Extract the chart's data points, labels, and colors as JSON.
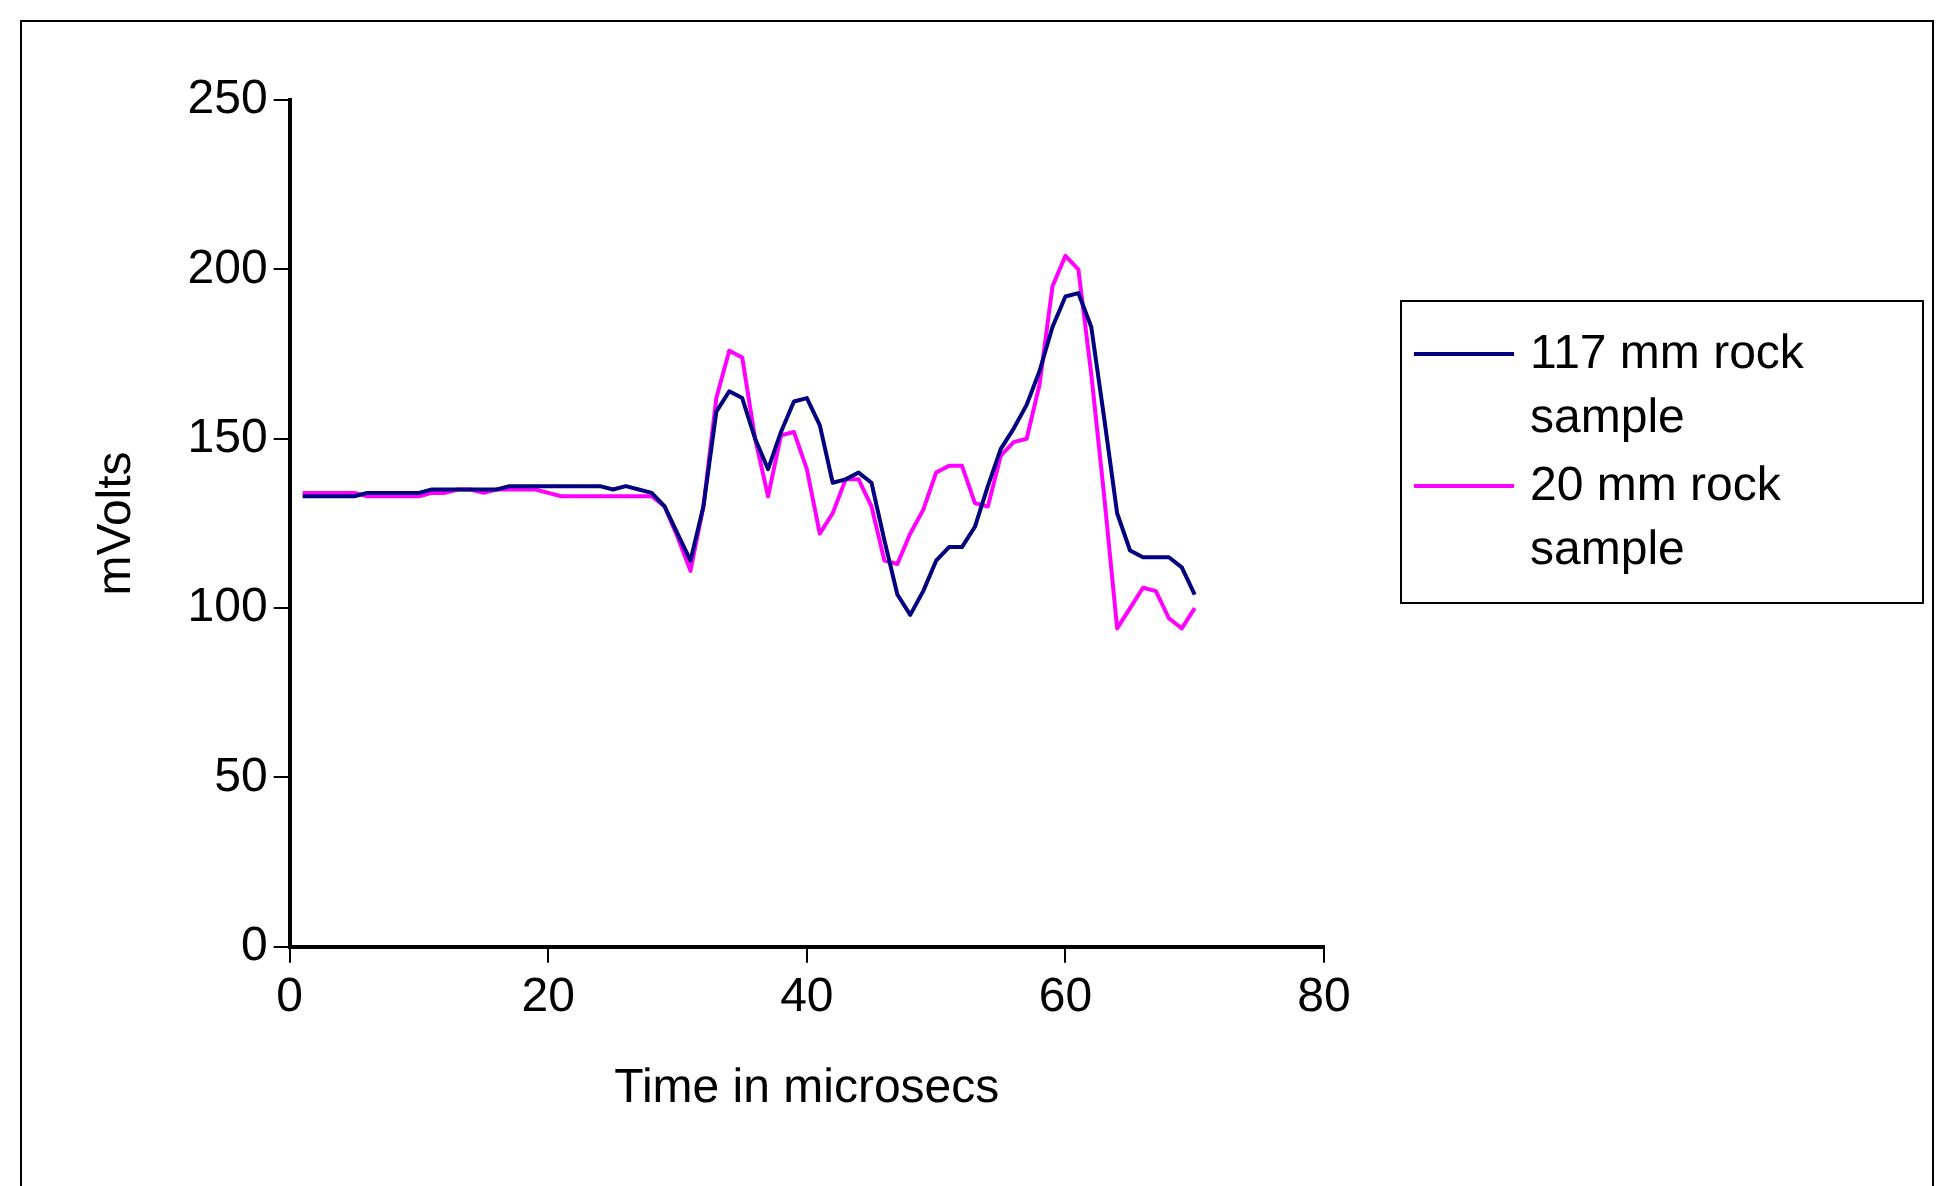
{
  "chart_data": {
    "type": "line",
    "xlabel": "Time in microsecs",
    "ylabel": "mVolts",
    "x": [
      1,
      2,
      3,
      4,
      5,
      6,
      7,
      8,
      9,
      10,
      11,
      12,
      13,
      14,
      15,
      16,
      17,
      18,
      19,
      20,
      21,
      22,
      23,
      24,
      25,
      26,
      27,
      28,
      29,
      30,
      31,
      32,
      33,
      34,
      35,
      36,
      37,
      38,
      39,
      40,
      41,
      42,
      43,
      44,
      45,
      46,
      47,
      48,
      49,
      50,
      51,
      52,
      53,
      54,
      55,
      56,
      57,
      58,
      59,
      60,
      61,
      62,
      63,
      64,
      65,
      66,
      67,
      68,
      69,
      70
    ],
    "series": [
      {
        "name": "117 mm rock sample",
        "color": "#000080",
        "values": [
          133,
          133,
          133,
          133,
          133,
          134,
          134,
          134,
          134,
          134,
          135,
          135,
          135,
          135,
          135,
          135,
          136,
          136,
          136,
          136,
          136,
          136,
          136,
          136,
          135,
          136,
          135,
          134,
          130,
          122,
          114,
          130,
          158,
          164,
          162,
          150,
          141,
          152,
          161,
          162,
          154,
          137,
          138,
          140,
          137,
          120,
          104,
          98,
          105,
          114,
          118,
          118,
          124,
          136,
          147,
          153,
          160,
          170,
          183,
          192,
          193,
          183,
          156,
          128,
          117,
          115,
          115,
          115,
          112,
          104
        ]
      },
      {
        "name": "20 mm rock sample",
        "color": "#ff00ff",
        "values": [
          134,
          134,
          134,
          134,
          134,
          133,
          133,
          133,
          133,
          133,
          134,
          134,
          135,
          135,
          134,
          135,
          135,
          135,
          135,
          134,
          133,
          133,
          133,
          133,
          133,
          133,
          133,
          133,
          130,
          121,
          111,
          130,
          162,
          176,
          174,
          150,
          133,
          151,
          152,
          141,
          122,
          128,
          138,
          138,
          130,
          114,
          113,
          122,
          129,
          140,
          142,
          142,
          131,
          130,
          145,
          149,
          150,
          166,
          195,
          204,
          200,
          169,
          133,
          94,
          100,
          106,
          105,
          97,
          94,
          100
        ]
      }
    ],
    "xlim": [
      0,
      80
    ],
    "xticks": [
      0,
      20,
      40,
      60,
      80
    ],
    "ylim": [
      0,
      250
    ],
    "yticks": [
      0,
      50,
      100,
      150,
      200,
      250
    ],
    "grid": false,
    "legend": "right",
    "marker": "none",
    "line_style": "solid"
  }
}
